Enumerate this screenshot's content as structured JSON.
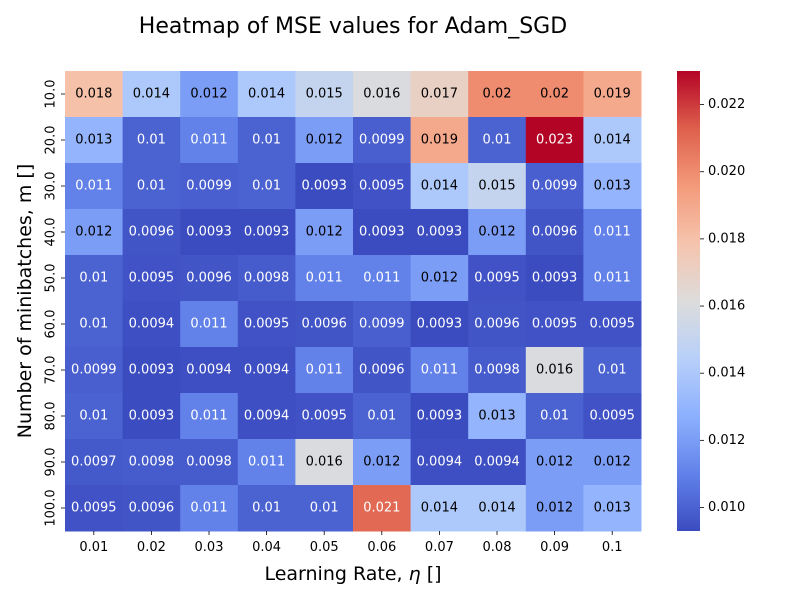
{
  "chart_data": {
    "type": "heatmap",
    "title": "Heatmap of MSE values for Adam_SGD",
    "xlabel_prefix": "Learning Rate, ",
    "xlabel_symbol": "η",
    "xlabel_suffix": " []",
    "ylabel": "Number of minibatches, m []",
    "x_categories": [
      "0.01",
      "0.02",
      "0.03",
      "0.04",
      "0.05",
      "0.06",
      "0.07",
      "0.08",
      "0.09",
      "0.1"
    ],
    "y_categories": [
      "10.0",
      "20.0",
      "30.0",
      "40.0",
      "50.0",
      "60.0",
      "70.0",
      "80.0",
      "90.0",
      "100.0"
    ],
    "values": [
      [
        0.018,
        0.014,
        0.012,
        0.014,
        0.015,
        0.016,
        0.017,
        0.02,
        0.02,
        0.019
      ],
      [
        0.013,
        0.01,
        0.011,
        0.01,
        0.012,
        0.0099,
        0.019,
        0.01,
        0.023,
        0.014
      ],
      [
        0.011,
        0.01,
        0.0099,
        0.01,
        0.0093,
        0.0095,
        0.014,
        0.015,
        0.0099,
        0.013
      ],
      [
        0.012,
        0.0096,
        0.0093,
        0.0093,
        0.012,
        0.0093,
        0.0093,
        0.012,
        0.0096,
        0.011
      ],
      [
        0.01,
        0.0095,
        0.0096,
        0.0098,
        0.011,
        0.011,
        0.012,
        0.0095,
        0.0093,
        0.011
      ],
      [
        0.01,
        0.0094,
        0.011,
        0.0095,
        0.0096,
        0.0099,
        0.0093,
        0.0096,
        0.0095,
        0.0095
      ],
      [
        0.0099,
        0.0093,
        0.0094,
        0.0094,
        0.011,
        0.0096,
        0.011,
        0.0098,
        0.016,
        0.01
      ],
      [
        0.01,
        0.0093,
        0.011,
        0.0094,
        0.0095,
        0.01,
        0.0093,
        0.013,
        0.01,
        0.0095
      ],
      [
        0.0097,
        0.0098,
        0.0098,
        0.011,
        0.016,
        0.012,
        0.0094,
        0.0094,
        0.012,
        0.012
      ],
      [
        0.0095,
        0.0096,
        0.011,
        0.01,
        0.01,
        0.021,
        0.014,
        0.014,
        0.012,
        0.013
      ]
    ],
    "cell_labels": [
      [
        "0.018",
        "0.014",
        "0.012",
        "0.014",
        "0.015",
        "0.016",
        "0.017",
        "0.02",
        "0.02",
        "0.019"
      ],
      [
        "0.013",
        "0.01",
        "0.011",
        "0.01",
        "0.012",
        "0.0099",
        "0.019",
        "0.01",
        "0.023",
        "0.014"
      ],
      [
        "0.011",
        "0.01",
        "0.0099",
        "0.01",
        "0.0093",
        "0.0095",
        "0.014",
        "0.015",
        "0.0099",
        "0.013"
      ],
      [
        "0.012",
        "0.0096",
        "0.0093",
        "0.0093",
        "0.012",
        "0.0093",
        "0.0093",
        "0.012",
        "0.0096",
        "0.011"
      ],
      [
        "0.01",
        "0.0095",
        "0.0096",
        "0.0098",
        "0.011",
        "0.011",
        "0.012",
        "0.0095",
        "0.0093",
        "0.011"
      ],
      [
        "0.01",
        "0.0094",
        "0.011",
        "0.0095",
        "0.0096",
        "0.0099",
        "0.0093",
        "0.0096",
        "0.0095",
        "0.0095"
      ],
      [
        "0.0099",
        "0.0093",
        "0.0094",
        "0.0094",
        "0.011",
        "0.0096",
        "0.011",
        "0.0098",
        "0.016",
        "0.01"
      ],
      [
        "0.01",
        "0.0093",
        "0.011",
        "0.0094",
        "0.0095",
        "0.01",
        "0.0093",
        "0.013",
        "0.01",
        "0.0095"
      ],
      [
        "0.0097",
        "0.0098",
        "0.0098",
        "0.011",
        "0.016",
        "0.012",
        "0.0094",
        "0.0094",
        "0.012",
        "0.012"
      ],
      [
        "0.0095",
        "0.0096",
        "0.011",
        "0.01",
        "0.01",
        "0.021",
        "0.014",
        "0.014",
        "0.012",
        "0.013"
      ]
    ],
    "colormap": "coolwarm",
    "colorbar": {
      "vmin": 0.0093,
      "vmax": 0.023,
      "ticks": [
        0.01,
        0.012,
        0.014,
        0.016,
        0.018,
        0.02,
        0.022
      ],
      "tick_labels": [
        "0.010",
        "0.012",
        "0.014",
        "0.016",
        "0.018",
        "0.020",
        "0.022"
      ]
    },
    "colors": {
      "text_dark": "#000000",
      "text_light": "#ffffff"
    }
  }
}
